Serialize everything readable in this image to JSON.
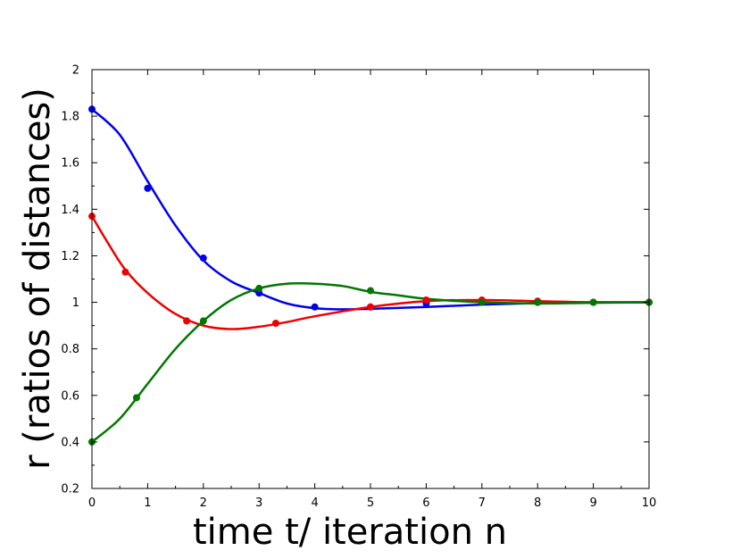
{
  "chart_data": {
    "type": "line",
    "xlabel": "time t/ iteration n",
    "ylabel": "r (ratios of distances)",
    "xlim": [
      0,
      10
    ],
    "ylim": [
      0.2,
      2
    ],
    "x_ticks": [
      "0",
      "1",
      "2",
      "3",
      "4",
      "5",
      "6",
      "7",
      "8",
      "9",
      "10"
    ],
    "y_ticks": [
      "0.2",
      "0.4",
      "0.6",
      "0.8",
      "1",
      "1.2",
      "1.4",
      "1.6",
      "1.8",
      "2"
    ],
    "grid": false,
    "legend": false,
    "series": [
      {
        "color": "#0000ee",
        "points": [
          [
            0,
            1.83
          ],
          [
            1,
            1.49
          ],
          [
            2,
            1.19
          ],
          [
            3,
            1.04
          ],
          [
            4,
            0.98
          ],
          [
            5,
            0.98
          ],
          [
            6,
            0.995
          ],
          [
            7,
            1.0
          ],
          [
            8,
            1.0
          ],
          [
            9,
            1.0
          ],
          [
            10,
            1.0
          ]
        ],
        "curve": [
          [
            0,
            1.83
          ],
          [
            0.5,
            1.72
          ],
          [
            1,
            1.52
          ],
          [
            1.5,
            1.33
          ],
          [
            2,
            1.18
          ],
          [
            2.5,
            1.09
          ],
          [
            3,
            1.04
          ],
          [
            3.5,
            0.995
          ],
          [
            4,
            0.975
          ],
          [
            4.5,
            0.97
          ],
          [
            5,
            0.972
          ],
          [
            6,
            0.98
          ],
          [
            7,
            0.99
          ],
          [
            8,
            0.997
          ],
          [
            9,
            1.0
          ],
          [
            10,
            1.0
          ]
        ]
      },
      {
        "color": "#ee0000",
        "points": [
          [
            0,
            1.37
          ],
          [
            0.6,
            1.13
          ],
          [
            1.7,
            0.92
          ],
          [
            3.3,
            0.91
          ],
          [
            5,
            0.98
          ],
          [
            6,
            1.01
          ],
          [
            7,
            1.01
          ],
          [
            8,
            1.005
          ],
          [
            9,
            1.0
          ],
          [
            10,
            1.0
          ]
        ],
        "curve": [
          [
            0,
            1.37
          ],
          [
            0.3,
            1.25
          ],
          [
            0.6,
            1.14
          ],
          [
            1,
            1.04
          ],
          [
            1.5,
            0.95
          ],
          [
            2,
            0.9
          ],
          [
            2.5,
            0.885
          ],
          [
            3,
            0.895
          ],
          [
            3.5,
            0.915
          ],
          [
            4,
            0.94
          ],
          [
            5,
            0.98
          ],
          [
            6,
            1.005
          ],
          [
            7,
            1.01
          ],
          [
            8,
            1.005
          ],
          [
            9,
            1.0
          ],
          [
            10,
            1.0
          ]
        ]
      },
      {
        "color": "#007700",
        "points": [
          [
            0,
            0.4
          ],
          [
            0.8,
            0.59
          ],
          [
            2,
            0.92
          ],
          [
            3,
            1.06
          ],
          [
            5,
            1.05
          ],
          [
            7,
            1.0
          ],
          [
            8,
            1.0
          ],
          [
            9,
            1.0
          ],
          [
            10,
            1.0
          ]
        ],
        "curve": [
          [
            0,
            0.4
          ],
          [
            0.5,
            0.5
          ],
          [
            1,
            0.65
          ],
          [
            1.5,
            0.8
          ],
          [
            2,
            0.92
          ],
          [
            2.5,
            1.01
          ],
          [
            3,
            1.06
          ],
          [
            3.5,
            1.08
          ],
          [
            4,
            1.08
          ],
          [
            4.5,
            1.07
          ],
          [
            5,
            1.045
          ],
          [
            5.5,
            1.03
          ],
          [
            6,
            1.015
          ],
          [
            7,
            1.0
          ],
          [
            8,
            0.995
          ],
          [
            9,
            0.998
          ],
          [
            10,
            1.0
          ]
        ]
      }
    ]
  }
}
